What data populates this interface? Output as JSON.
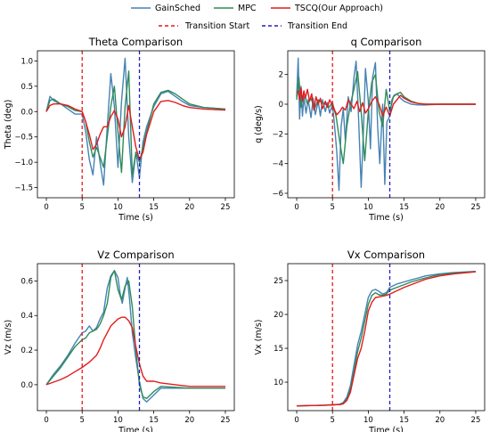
{
  "legend": [
    {
      "label": "GainSched",
      "color": "#4682b4",
      "style": "solid"
    },
    {
      "label": "MPC",
      "color": "#2e8b57",
      "style": "solid"
    },
    {
      "label": "TSCQ(Our Approach)",
      "color": "#e41a1c",
      "style": "solid"
    },
    {
      "label": "Transition Start",
      "color": "#e41a1c",
      "style": "dashed"
    },
    {
      "label": "Transition End",
      "color": "#1f1fbf",
      "style": "dashed"
    }
  ],
  "colors": {
    "GainSched": "#4682b4",
    "MPC": "#2e8b57",
    "TSCQ": "#e41a1c",
    "transition_start": "#e41a1c",
    "transition_end": "#1f1fbf"
  },
  "chart_data": [
    {
      "type": "line",
      "title": "Theta Comparison",
      "xlabel": "Time (s)",
      "ylabel": "Theta (deg)",
      "xlim": [
        -1.25,
        26.25
      ],
      "ylim": [
        -1.7,
        1.2
      ],
      "xticks": [
        0,
        5,
        10,
        15,
        20,
        25
      ],
      "yticks": [
        -1.5,
        -1.0,
        -0.5,
        0.0,
        0.5,
        1.0
      ],
      "ytick_labels": [
        "−1.5",
        "−1.0",
        "−0.5",
        "0.0",
        "0.5",
        "1.0"
      ],
      "vlines": {
        "transition_start": 5,
        "transition_end": 13
      },
      "series": [
        {
          "name": "GainSched",
          "x": [
            0,
            0.5,
            1,
            1.5,
            2,
            3,
            4,
            5,
            5.5,
            6,
            6.5,
            7,
            7.5,
            8,
            8.5,
            9,
            9.5,
            10,
            10.5,
            11,
            11.5,
            12,
            12.5,
            13,
            13.5,
            14,
            15,
            16,
            17,
            18,
            19,
            20,
            22,
            25
          ],
          "y": [
            0,
            0.3,
            0.22,
            0.18,
            0.15,
            0.05,
            -0.05,
            -0.05,
            -0.4,
            -0.95,
            -1.25,
            -0.5,
            -1.0,
            -1.45,
            -0.3,
            0.75,
            0.1,
            -1.1,
            0.2,
            1.05,
            -0.5,
            -1.4,
            -0.8,
            -1.3,
            -0.6,
            -0.3,
            0.1,
            0.35,
            0.4,
            0.3,
            0.2,
            0.12,
            0.08,
            0.05
          ]
        },
        {
          "name": "MPC",
          "x": [
            0,
            0.5,
            1,
            1.5,
            2,
            3,
            4,
            5,
            5.5,
            6,
            6.5,
            7,
            7.5,
            8,
            8.5,
            9,
            9.5,
            10,
            10.5,
            11,
            11.5,
            12,
            12.5,
            13,
            13.5,
            14,
            15,
            16,
            17,
            18,
            19,
            20,
            22,
            25
          ],
          "y": [
            0,
            0.22,
            0.25,
            0.2,
            0.15,
            0.1,
            0.02,
            0.0,
            -0.2,
            -0.6,
            -0.9,
            -0.7,
            -0.9,
            -1.1,
            -0.5,
            0.1,
            0.5,
            -0.4,
            -1.2,
            0.1,
            0.8,
            -1.25,
            -0.8,
            -1.0,
            -0.7,
            -0.4,
            0.15,
            0.38,
            0.42,
            0.35,
            0.25,
            0.15,
            0.08,
            0.05
          ]
        },
        {
          "name": "TSCQ(Our Approach)",
          "x": [
            0,
            0.5,
            1,
            2,
            3,
            4,
            5,
            5.5,
            6,
            6.5,
            7,
            7.5,
            8,
            8.5,
            9,
            9.5,
            10,
            10.5,
            11,
            11.5,
            12,
            12.5,
            13,
            13.5,
            14,
            15,
            16,
            17,
            18,
            19,
            20,
            22,
            25
          ],
          "y": [
            0,
            0.12,
            0.15,
            0.15,
            0.12,
            0.05,
            0.0,
            -0.2,
            -0.45,
            -0.75,
            -0.65,
            -0.45,
            -0.3,
            -0.3,
            -0.1,
            0.02,
            -0.15,
            -0.5,
            -0.3,
            0.12,
            -0.3,
            -0.7,
            -0.95,
            -0.8,
            -0.45,
            0.0,
            0.2,
            0.22,
            0.18,
            0.12,
            0.08,
            0.05,
            0.03
          ]
        }
      ]
    },
    {
      "type": "line",
      "title": "q Comparison",
      "xlabel": "Time (s)",
      "ylabel": "q (deg/s)",
      "xlim": [
        -1.25,
        26.25
      ],
      "ylim": [
        -6.3,
        3.6
      ],
      "xticks": [
        0,
        5,
        10,
        15,
        20,
        25
      ],
      "yticks": [
        -6,
        -4,
        -2,
        0,
        2
      ],
      "ytick_labels": [
        "−6",
        "−4",
        "−2",
        "0",
        "2"
      ],
      "vlines": {
        "transition_start": 5,
        "transition_end": 13
      },
      "series": [
        {
          "name": "GainSched",
          "x": [
            0,
            0.2,
            0.4,
            0.6,
            0.8,
            1,
            1.3,
            1.6,
            2,
            2.3,
            2.6,
            3,
            3.3,
            3.6,
            4,
            4.3,
            4.6,
            5,
            5.3,
            5.6,
            5.9,
            6.2,
            6.5,
            6.8,
            7.2,
            7.6,
            8,
            8.3,
            8.6,
            9,
            9.3,
            9.6,
            10,
            10.3,
            10.6,
            11,
            11.3,
            11.6,
            12,
            12.3,
            12.6,
            13,
            13.3,
            13.6,
            14,
            14.5,
            15,
            15.5,
            16,
            17,
            18,
            20,
            25
          ],
          "y": [
            0.5,
            3.1,
            -1.0,
            1.2,
            -0.8,
            0.5,
            -0.6,
            0.3,
            -0.9,
            0.4,
            -0.7,
            0.2,
            -0.8,
            0.3,
            -0.5,
            0.1,
            -0.6,
            0.0,
            -1.5,
            -3.2,
            -5.8,
            -1.5,
            -0.3,
            -2.5,
            0.5,
            -0.5,
            1.8,
            2.9,
            -0.5,
            -5.6,
            -2.0,
            2.4,
            0.2,
            -3.0,
            1.8,
            2.8,
            -1.5,
            -4.0,
            0.0,
            -5.4,
            -1.2,
            -0.8,
            0.3,
            0.6,
            0.7,
            0.4,
            0.2,
            0.1,
            0.0,
            -0.05,
            -0.05,
            0.0,
            0.0
          ]
        },
        {
          "name": "MPC",
          "x": [
            0,
            0.3,
            0.6,
            1,
            1.5,
            2,
            2.5,
            3,
            3.5,
            4,
            4.5,
            5,
            5.5,
            6,
            6.5,
            7,
            7.5,
            8,
            8.5,
            9,
            9.5,
            10,
            10.5,
            11,
            11.5,
            12,
            12.5,
            13,
            13.5,
            14,
            14.5,
            15,
            16,
            17,
            18,
            20,
            25
          ],
          "y": [
            0.3,
            1.8,
            -0.2,
            0.8,
            0.0,
            0.4,
            -0.3,
            0.3,
            0.1,
            0.0,
            -0.2,
            0.1,
            -0.8,
            -2.5,
            -4.0,
            -1.5,
            0.0,
            1.0,
            2.2,
            -0.5,
            -3.8,
            -0.5,
            1.5,
            2.0,
            -0.5,
            -1.5,
            1.0,
            -0.5,
            0.5,
            0.7,
            0.8,
            0.5,
            0.2,
            0.05,
            0.0,
            0.0,
            0.0
          ]
        },
        {
          "name": "TSCQ(Our Approach)",
          "x": [
            0,
            0.2,
            0.4,
            0.6,
            0.8,
            1,
            1.2,
            1.5,
            1.8,
            2.1,
            2.4,
            2.7,
            3,
            3.3,
            3.6,
            4,
            4.3,
            4.6,
            5,
            5.3,
            5.6,
            6,
            6.4,
            6.8,
            7.2,
            7.6,
            8,
            8.4,
            8.8,
            9.2,
            9.6,
            10,
            10.5,
            11,
            11.5,
            12,
            12.5,
            13,
            13.5,
            14,
            14.5,
            15,
            16,
            17,
            18,
            20,
            25
          ],
          "y": [
            0.8,
            0.9,
            0.3,
            1.1,
            0.2,
            0.9,
            0.4,
            1.0,
            0.2,
            0.7,
            -0.4,
            0.5,
            0.0,
            0.4,
            -0.3,
            0.2,
            -0.2,
            0.3,
            -0.1,
            -0.4,
            -0.7,
            -0.5,
            -0.2,
            -0.4,
            0.3,
            0.0,
            -0.3,
            0.2,
            -0.5,
            0.1,
            -0.6,
            -0.3,
            0.2,
            0.5,
            0.0,
            -0.8,
            -0.2,
            -0.8,
            0.0,
            0.3,
            0.6,
            0.4,
            0.15,
            0.05,
            0.0,
            0.0,
            0.0
          ]
        }
      ]
    },
    {
      "type": "line",
      "title": "Vz Comparison",
      "xlabel": "Time (s)",
      "ylabel": "Vz (m/s)",
      "xlim": [
        -1.25,
        26.25
      ],
      "ylim": [
        -0.15,
        0.7
      ],
      "xticks": [
        0,
        5,
        10,
        15,
        20,
        25
      ],
      "yticks": [
        0.0,
        0.2,
        0.4,
        0.6
      ],
      "ytick_labels": [
        "0.0",
        "0.2",
        "0.4",
        "0.6"
      ],
      "vlines": {
        "transition_start": 5,
        "transition_end": 13
      },
      "series": [
        {
          "name": "GainSched",
          "x": [
            0,
            1,
            2,
            3,
            4,
            5,
            5.5,
            6,
            6.5,
            7,
            7.5,
            8,
            8.5,
            9,
            9.5,
            10,
            10.3,
            10.6,
            11,
            11.3,
            11.6,
            12,
            12.5,
            13,
            13.5,
            14,
            15,
            16,
            18,
            20,
            25
          ],
          "y": [
            0,
            0.06,
            0.11,
            0.17,
            0.24,
            0.3,
            0.31,
            0.34,
            0.31,
            0.33,
            0.38,
            0.42,
            0.56,
            0.63,
            0.66,
            0.62,
            0.53,
            0.47,
            0.56,
            0.62,
            0.5,
            0.3,
            0.15,
            0.02,
            -0.08,
            -0.1,
            -0.06,
            -0.02,
            -0.02,
            -0.02,
            -0.02
          ]
        },
        {
          "name": "MPC",
          "x": [
            0,
            1,
            2,
            3,
            4,
            5,
            5.5,
            6,
            6.5,
            7,
            7.5,
            8,
            8.5,
            9,
            9.5,
            10,
            10.5,
            11,
            11.5,
            12,
            12.5,
            13,
            13.5,
            14,
            15,
            16,
            18,
            20,
            25
          ],
          "y": [
            0,
            0.05,
            0.1,
            0.16,
            0.22,
            0.26,
            0.27,
            0.3,
            0.31,
            0.32,
            0.35,
            0.4,
            0.47,
            0.62,
            0.66,
            0.55,
            0.49,
            0.57,
            0.6,
            0.45,
            0.2,
            0.0,
            -0.07,
            -0.08,
            -0.04,
            -0.01,
            -0.015,
            -0.02,
            -0.02
          ]
        },
        {
          "name": "TSCQ(Our Approach)",
          "x": [
            0,
            1,
            2,
            3,
            4,
            5,
            6,
            7,
            7.5,
            8,
            8.5,
            9,
            9.5,
            10,
            10.5,
            11,
            11.5,
            12,
            12.5,
            13,
            13.5,
            14,
            15,
            16,
            18,
            20,
            25
          ],
          "y": [
            0,
            0.015,
            0.03,
            0.05,
            0.075,
            0.1,
            0.13,
            0.17,
            0.21,
            0.26,
            0.3,
            0.34,
            0.36,
            0.38,
            0.39,
            0.39,
            0.37,
            0.33,
            0.22,
            0.12,
            0.05,
            0.02,
            0.02,
            0.01,
            0.0,
            -0.01,
            -0.01
          ]
        }
      ]
    },
    {
      "type": "line",
      "title": "Vx Comparison",
      "xlabel": "Time (s)",
      "ylabel": "Vx (m/s)",
      "xlim": [
        -1.25,
        26.25
      ],
      "ylim": [
        5.8,
        27.5
      ],
      "xticks": [
        0,
        5,
        10,
        15,
        20,
        25
      ],
      "yticks": [
        10,
        15,
        20,
        25
      ],
      "ytick_labels": [
        "10",
        "15",
        "20",
        "25"
      ],
      "vlines": {
        "transition_start": 5,
        "transition_end": 13
      },
      "series": [
        {
          "name": "GainSched",
          "x": [
            0,
            2,
            4,
            5,
            6,
            6.5,
            7,
            7.5,
            8,
            8.5,
            9,
            9.5,
            10,
            10.5,
            11,
            11.5,
            12,
            12.5,
            13,
            14,
            15,
            16,
            17,
            18,
            20,
            22,
            24,
            25
          ],
          "y": [
            6.5,
            6.55,
            6.6,
            6.65,
            6.75,
            7.0,
            7.8,
            9.5,
            12.5,
            15.5,
            17.5,
            20.0,
            22.5,
            23.5,
            23.7,
            23.4,
            23.0,
            23.2,
            24.0,
            24.5,
            24.8,
            25.1,
            25.4,
            25.7,
            26.0,
            26.2,
            26.3,
            26.35
          ]
        },
        {
          "name": "MPC",
          "x": [
            0,
            2,
            4,
            5,
            6,
            6.5,
            7,
            7.5,
            8,
            8.5,
            9,
            9.5,
            10,
            10.5,
            11,
            11.5,
            12,
            12.5,
            13,
            14,
            15,
            16,
            17,
            18,
            20,
            22,
            24,
            25
          ],
          "y": [
            6.5,
            6.55,
            6.6,
            6.65,
            6.7,
            6.9,
            7.5,
            9.0,
            11.5,
            14.5,
            16.5,
            19.0,
            21.5,
            22.8,
            23.2,
            22.9,
            22.8,
            23.0,
            23.6,
            24.0,
            24.4,
            24.8,
            25.1,
            25.4,
            25.9,
            26.1,
            26.25,
            26.3
          ]
        },
        {
          "name": "TSCQ(Our Approach)",
          "x": [
            0,
            2,
            4,
            5,
            6,
            6.5,
            7,
            7.5,
            8,
            8.5,
            9,
            9.5,
            10,
            10.5,
            11,
            11.5,
            12,
            12.5,
            13,
            14,
            15,
            16,
            17,
            18,
            20,
            22,
            24,
            25
          ],
          "y": [
            6.5,
            6.55,
            6.6,
            6.65,
            6.7,
            6.8,
            7.3,
            8.5,
            11.0,
            13.5,
            15.0,
            17.5,
            20.5,
            21.8,
            22.5,
            22.6,
            22.7,
            22.8,
            23.0,
            23.5,
            24.0,
            24.4,
            24.8,
            25.2,
            25.7,
            26.0,
            26.2,
            26.3
          ]
        }
      ]
    }
  ]
}
